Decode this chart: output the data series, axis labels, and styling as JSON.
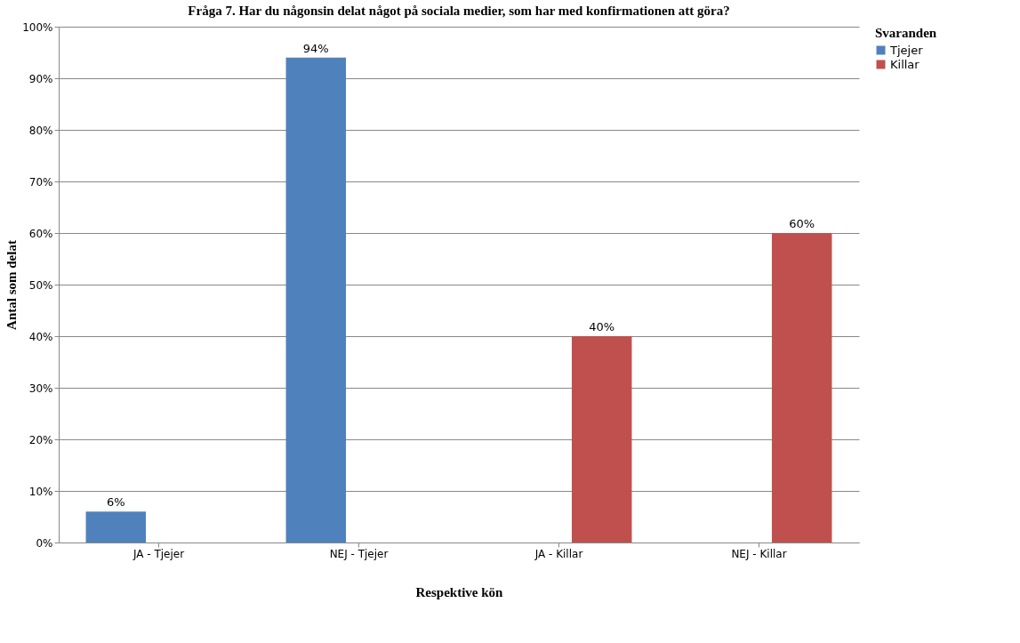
{
  "chart_data": {
    "type": "bar",
    "title": "Fråga 7. Har du någonsin delat något på sociala medier, som har med konfirmationen att göra?",
    "xlabel": "Respektive kön",
    "ylabel": "Antal som delat",
    "legend_title": "Svaranden",
    "categories": [
      "JA - Tjejer",
      "NEJ - Tjejer",
      "JA - Killar",
      "NEJ - Killar"
    ],
    "series": [
      {
        "name": "Tjejer",
        "color": "#4f81bd",
        "values": [
          6,
          94,
          null,
          null
        ],
        "value_labels": [
          "6%",
          "94%",
          null,
          null
        ]
      },
      {
        "name": "Killar",
        "color": "#c0504d",
        "values": [
          null,
          null,
          40,
          60
        ],
        "value_labels": [
          null,
          null,
          "40%",
          "60%"
        ]
      }
    ],
    "ylim": [
      0,
      100
    ],
    "yticks": [
      {
        "value": 0,
        "label": "0%"
      },
      {
        "value": 10,
        "label": "10%"
      },
      {
        "value": 20,
        "label": "20%"
      },
      {
        "value": 30,
        "label": "30%"
      },
      {
        "value": 40,
        "label": "40%"
      },
      {
        "value": 50,
        "label": "50%"
      },
      {
        "value": 60,
        "label": "60%"
      },
      {
        "value": 70,
        "label": "70%"
      },
      {
        "value": 80,
        "label": "80%"
      },
      {
        "value": 90,
        "label": "90%"
      },
      {
        "value": 100,
        "label": "100%"
      }
    ],
    "grid": "y",
    "legend": "right"
  }
}
